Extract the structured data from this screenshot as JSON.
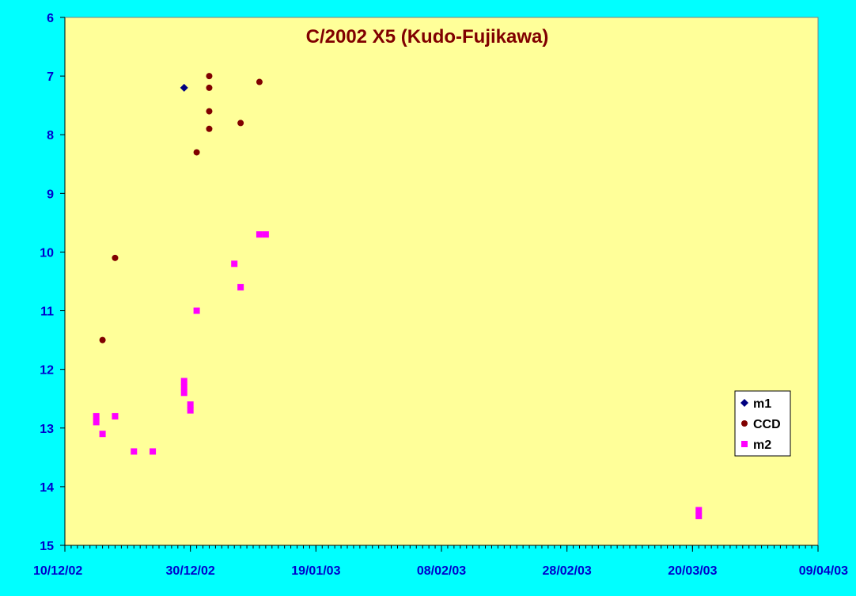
{
  "chart_data": {
    "type": "scatter",
    "title": "C/2002 X5 (Kudo-Fujikawa)",
    "xlabel": "",
    "ylabel": "",
    "x_tick_labels": [
      "10/12/02",
      "30/12/02",
      "19/01/03",
      "08/02/03",
      "28/02/03",
      "20/03/03",
      "09/04/03"
    ],
    "y_tick_labels": [
      "6",
      "7",
      "8",
      "9",
      "10",
      "11",
      "12",
      "13",
      "14",
      "15"
    ],
    "xlim": [
      "2002-12-10",
      "2003-04-09"
    ],
    "ylim": [
      6,
      15
    ],
    "y_axis_reversed": true,
    "grid": false,
    "legend_position": "right",
    "plot_background": "#ffff99",
    "page_background": "#00ffff",
    "axis_label_color": "#0000cc",
    "title_color": "#800000",
    "series": [
      {
        "name": "m1",
        "marker": "diamond",
        "color": "#000080",
        "points": [
          {
            "x": "2002-12-29",
            "y": 7.2
          }
        ]
      },
      {
        "name": "CCD",
        "marker": "circle",
        "color": "#800000",
        "points": [
          {
            "x": "2002-12-16",
            "y": 11.5
          },
          {
            "x": "2002-12-18",
            "y": 10.1
          },
          {
            "x": "2002-12-31",
            "y": 8.3
          },
          {
            "x": "2003-01-02",
            "y": 7.0
          },
          {
            "x": "2003-01-02",
            "y": 7.2
          },
          {
            "x": "2003-01-02",
            "y": 7.6
          },
          {
            "x": "2003-01-02",
            "y": 7.9
          },
          {
            "x": "2003-01-07",
            "y": 7.8
          },
          {
            "x": "2003-01-10",
            "y": 7.1
          }
        ]
      },
      {
        "name": "m2",
        "marker": "square",
        "color": "#ff00ff",
        "points": [
          {
            "x": "2002-12-15",
            "y": 12.8
          },
          {
            "x": "2002-12-15",
            "y": 12.9
          },
          {
            "x": "2002-12-16",
            "y": 13.1
          },
          {
            "x": "2002-12-18",
            "y": 12.8
          },
          {
            "x": "2002-12-21",
            "y": 13.4
          },
          {
            "x": "2002-12-24",
            "y": 13.4
          },
          {
            "x": "2002-12-29",
            "y": 12.2
          },
          {
            "x": "2002-12-29",
            "y": 12.3
          },
          {
            "x": "2002-12-29",
            "y": 12.4
          },
          {
            "x": "2002-12-30",
            "y": 12.6
          },
          {
            "x": "2002-12-30",
            "y": 12.7
          },
          {
            "x": "2002-12-31",
            "y": 11.0
          },
          {
            "x": "2003-01-06",
            "y": 10.2
          },
          {
            "x": "2003-01-07",
            "y": 10.6
          },
          {
            "x": "2003-01-10",
            "y": 9.7
          },
          {
            "x": "2003-01-11",
            "y": 9.7
          },
          {
            "x": "2003-03-21",
            "y": 14.4
          },
          {
            "x": "2003-03-21",
            "y": 14.5
          }
        ]
      }
    ]
  }
}
